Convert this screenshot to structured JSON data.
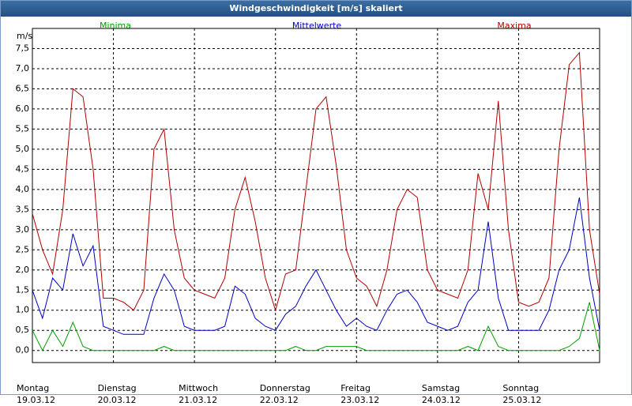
{
  "chart_data": {
    "type": "line",
    "title": "Windgeschwindigkeit [m/s] skaliert",
    "y_label": "m/s",
    "x": [
      0,
      3,
      6,
      9,
      12,
      15,
      18,
      21,
      24,
      27,
      30,
      33,
      36,
      39,
      42,
      45,
      48,
      51,
      54,
      57,
      60,
      63,
      66,
      69,
      72,
      75,
      78,
      81,
      84,
      87,
      90,
      93,
      96,
      99,
      102,
      105,
      108,
      111,
      114,
      117,
      120,
      123,
      126,
      129,
      132,
      135,
      138,
      141,
      144,
      147,
      150,
      153,
      156,
      159,
      162,
      165,
      168
    ],
    "series": [
      {
        "name": "Minima",
        "color": "#00a000",
        "values": [
          0.5,
          0.0,
          0.5,
          0.1,
          0.7,
          0.1,
          0.0,
          0.0,
          0,
          0,
          0,
          0,
          0,
          0.1,
          0,
          0,
          0,
          0,
          0,
          0,
          0,
          0,
          0,
          0,
          0,
          0,
          0.1,
          0,
          0,
          0.1,
          0.1,
          0.1,
          0.1,
          0,
          0,
          0,
          0,
          0,
          0,
          0,
          0,
          0,
          0,
          0.1,
          0,
          0.6,
          0.1,
          0,
          0,
          0,
          0,
          0,
          0,
          0.1,
          0.3,
          1.2,
          0
        ]
      },
      {
        "name": "Mittelwerte",
        "color": "#0000c0",
        "values": [
          1.5,
          0.8,
          1.8,
          1.5,
          2.9,
          2.1,
          2.6,
          0.6,
          0.5,
          0.4,
          0.4,
          0.4,
          1.3,
          1.9,
          1.5,
          0.6,
          0.5,
          0.5,
          0.5,
          0.6,
          1.6,
          1.4,
          0.8,
          0.6,
          0.5,
          0.9,
          1.1,
          1.6,
          2.0,
          1.5,
          1.0,
          0.6,
          0.8,
          0.6,
          0.5,
          1.0,
          1.4,
          1.5,
          1.2,
          0.7,
          0.6,
          0.5,
          0.6,
          1.2,
          1.5,
          3.2,
          1.3,
          0.5,
          0.5,
          0.5,
          0.5,
          1.0,
          2.0,
          2.5,
          3.8,
          1.8,
          0.5
        ]
      },
      {
        "name": "Maxima",
        "color": "#b00000",
        "values": [
          3.4,
          2.5,
          1.9,
          3.5,
          6.5,
          6.3,
          4.5,
          1.3,
          1.3,
          1.2,
          1.0,
          1.5,
          5.0,
          5.5,
          3.0,
          1.8,
          1.5,
          1.4,
          1.3,
          1.8,
          3.5,
          4.3,
          3.2,
          1.8,
          1.0,
          1.9,
          2.0,
          4.0,
          6.0,
          6.3,
          4.6,
          2.5,
          1.8,
          1.6,
          1.1,
          2.0,
          3.5,
          4.0,
          3.8,
          2.0,
          1.5,
          1.4,
          1.3,
          2.0,
          4.4,
          3.5,
          6.2,
          3.0,
          1.2,
          1.1,
          1.2,
          1.8,
          5.0,
          7.1,
          7.4,
          3.0,
          1.4
        ]
      }
    ],
    "xlim": [
      0,
      168
    ],
    "xticks": [
      {
        "value": 0,
        "label": "Montag\n19.03.12"
      },
      {
        "value": 24,
        "label": "Dienstag\n20.03.12"
      },
      {
        "value": 48,
        "label": "Mittwoch\n21.03.12"
      },
      {
        "value": 72,
        "label": "Donnerstag\n22.03.12"
      },
      {
        "value": 96,
        "label": "Freitag\n23.03.12"
      },
      {
        "value": 120,
        "label": "Samstag\n24.03.12"
      },
      {
        "value": 144,
        "label": "Sonntag\n25.03.12"
      }
    ],
    "ylim": [
      -0.3,
      8.0
    ],
    "yticks": [
      {
        "value": 0,
        "label": "0,0"
      },
      {
        "value": 0.5,
        "label": "0,5"
      },
      {
        "value": 1,
        "label": "1,0"
      },
      {
        "value": 1.5,
        "label": "1,5"
      },
      {
        "value": 2,
        "label": "2,0"
      },
      {
        "value": 2.5,
        "label": "2,5"
      },
      {
        "value": 3,
        "label": "3,0"
      },
      {
        "value": 3.5,
        "label": "3,5"
      },
      {
        "value": 4,
        "label": "4,0"
      },
      {
        "value": 4.5,
        "label": "4,5"
      },
      {
        "value": 5,
        "label": "5,0"
      },
      {
        "value": 5.5,
        "label": "5,5"
      },
      {
        "value": 6,
        "label": "6,0"
      },
      {
        "value": 6.5,
        "label": "6,5"
      },
      {
        "value": 7,
        "label": "7,0"
      },
      {
        "value": 7.5,
        "label": "7,5"
      }
    ],
    "grid": true
  }
}
